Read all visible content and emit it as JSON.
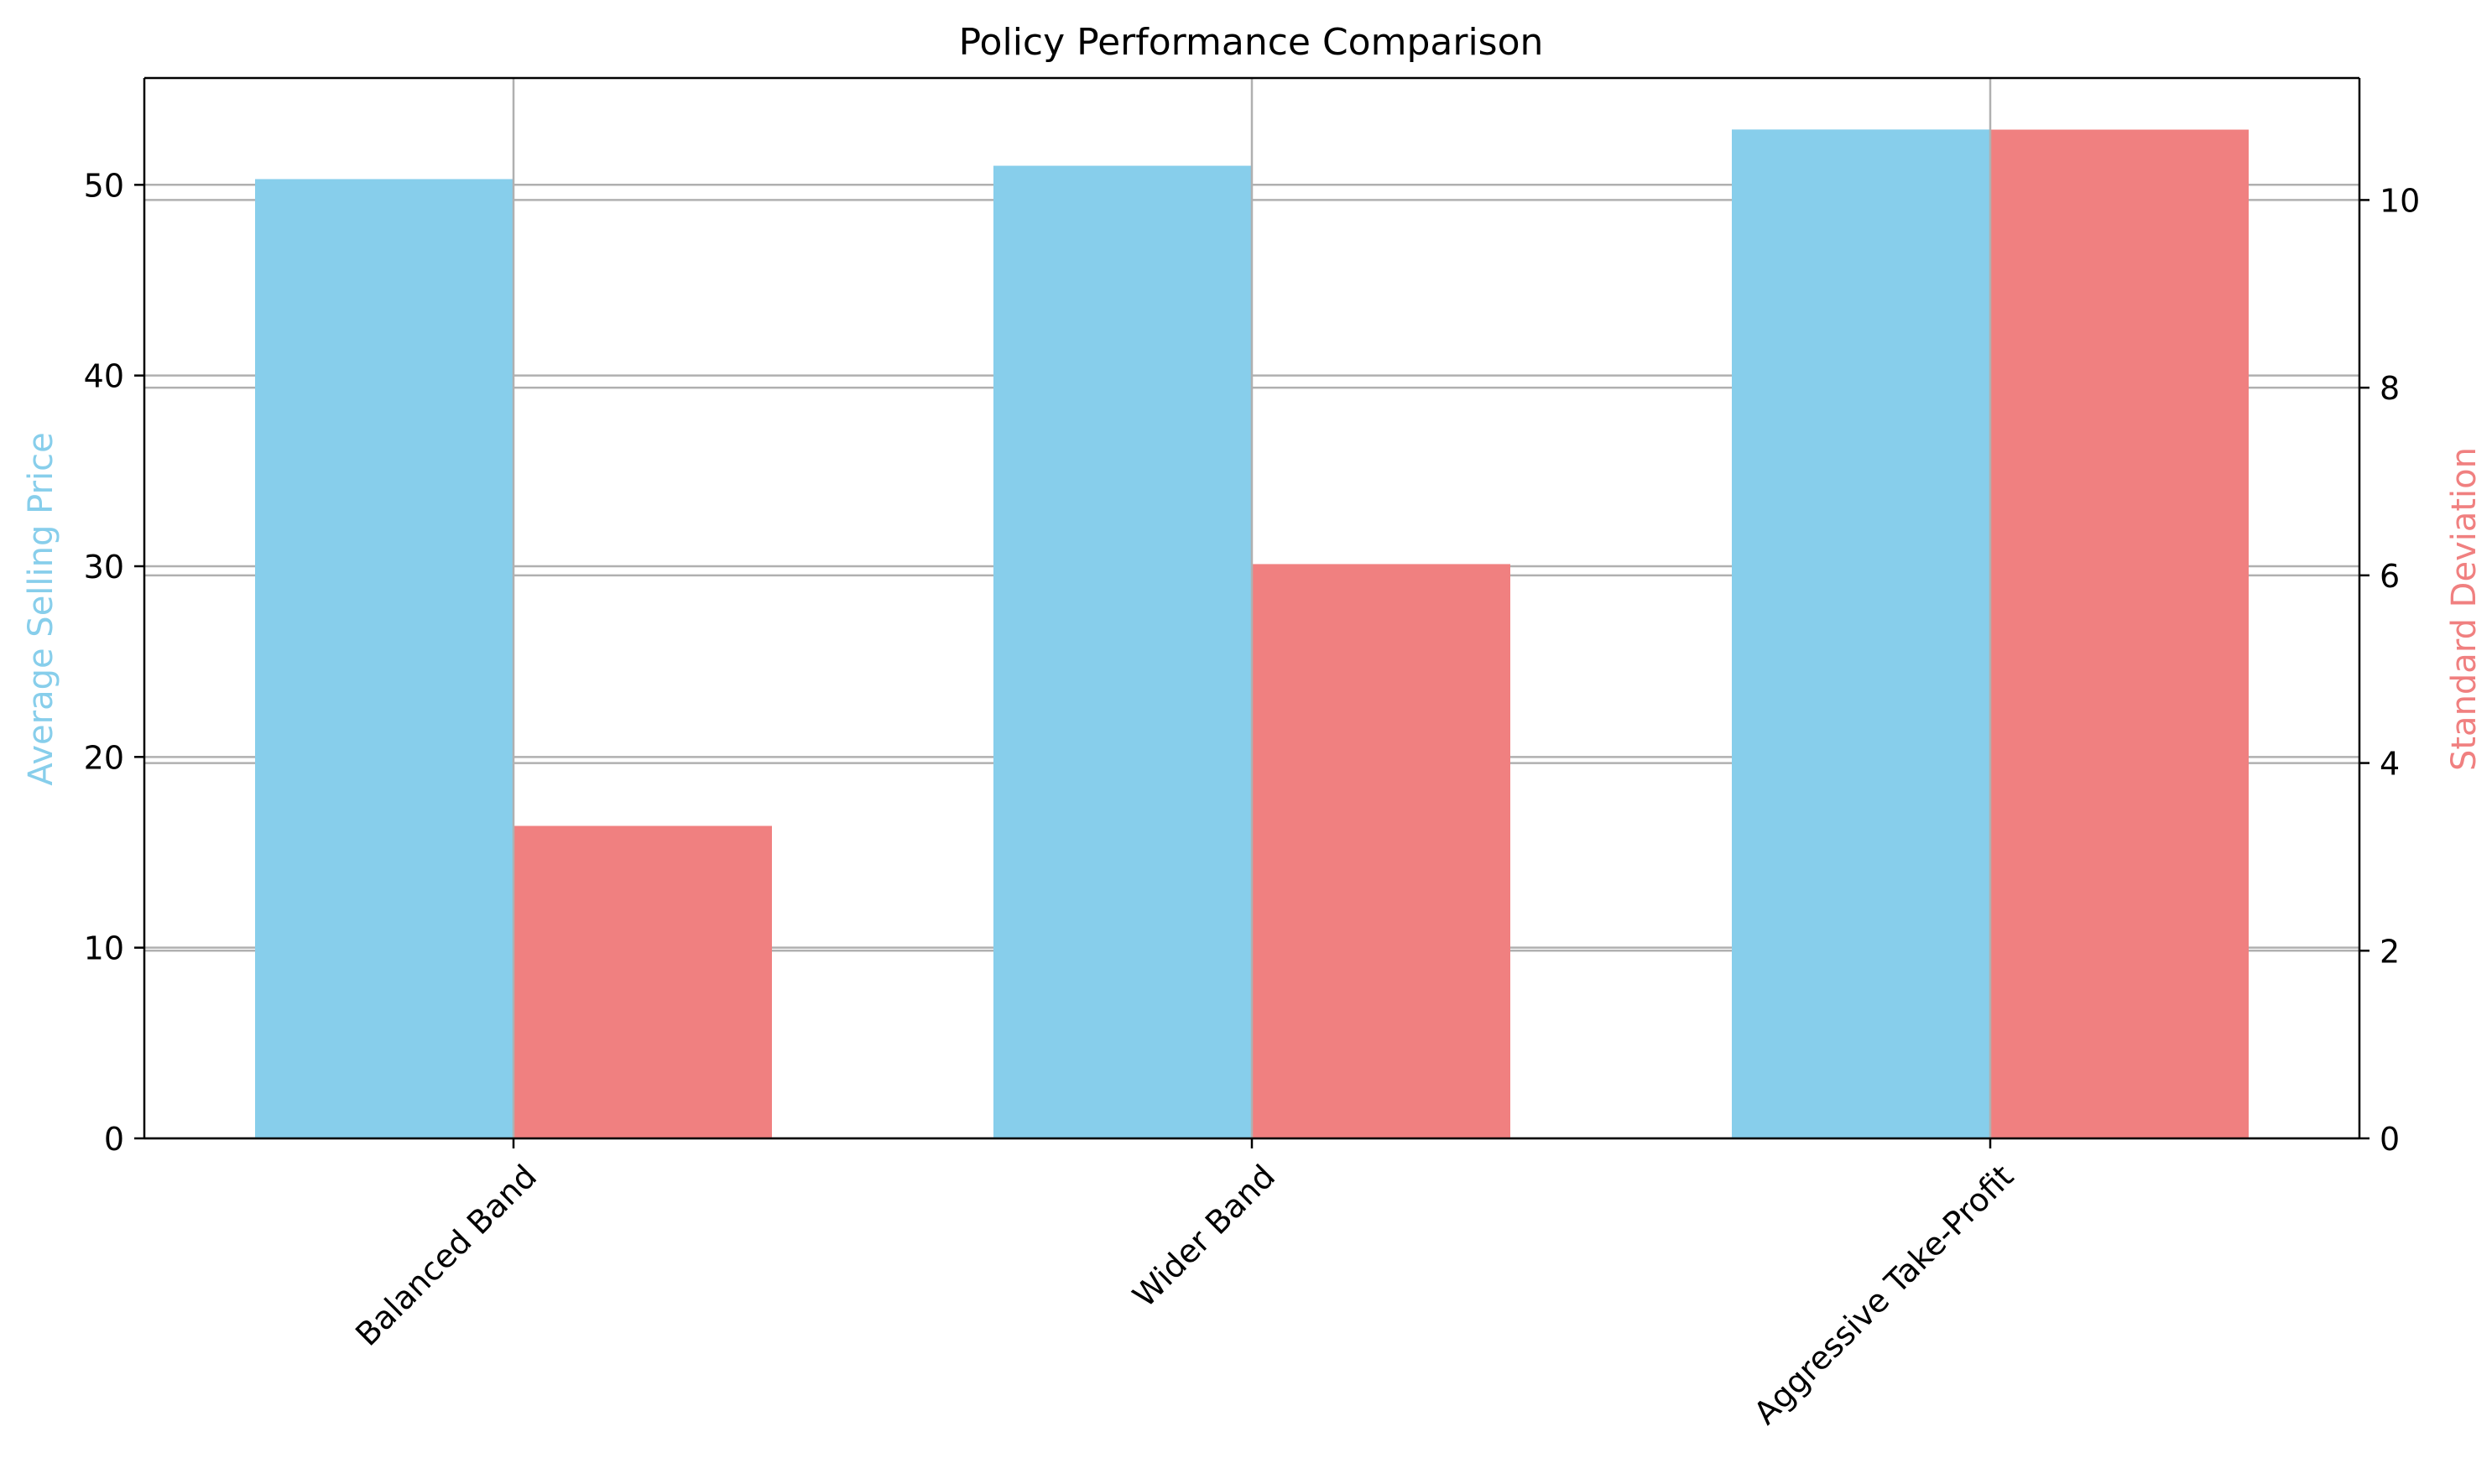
{
  "chart_data": {
    "type": "bar",
    "title": "Policy Performance Comparison",
    "categories": [
      "Balanced Band",
      "Wider Band",
      "Aggressive Take-Profit"
    ],
    "series": [
      {
        "name": "Average Selling Price",
        "axis": "left",
        "color": "#87ceeb",
        "values": [
          50.3,
          51.0,
          52.9
        ]
      },
      {
        "name": "Standard Deviation",
        "axis": "right",
        "color": "#f08080",
        "values": [
          3.33,
          6.12,
          10.75
        ]
      }
    ],
    "ylabel": "Average Selling Price",
    "ylabel_color": "#87ceeb",
    "y2label": "Standard Deviation",
    "y2label_color": "#f08080",
    "ylim": [
      0,
      55.6
    ],
    "y2lim": [
      0,
      11.3
    ],
    "yticks": [
      "0",
      "10",
      "20",
      "30",
      "40",
      "50"
    ],
    "y2ticks": [
      "0",
      "2",
      "4",
      "6",
      "8",
      "10"
    ],
    "grid": true,
    "tick_label_rotation_deg": -45
  }
}
